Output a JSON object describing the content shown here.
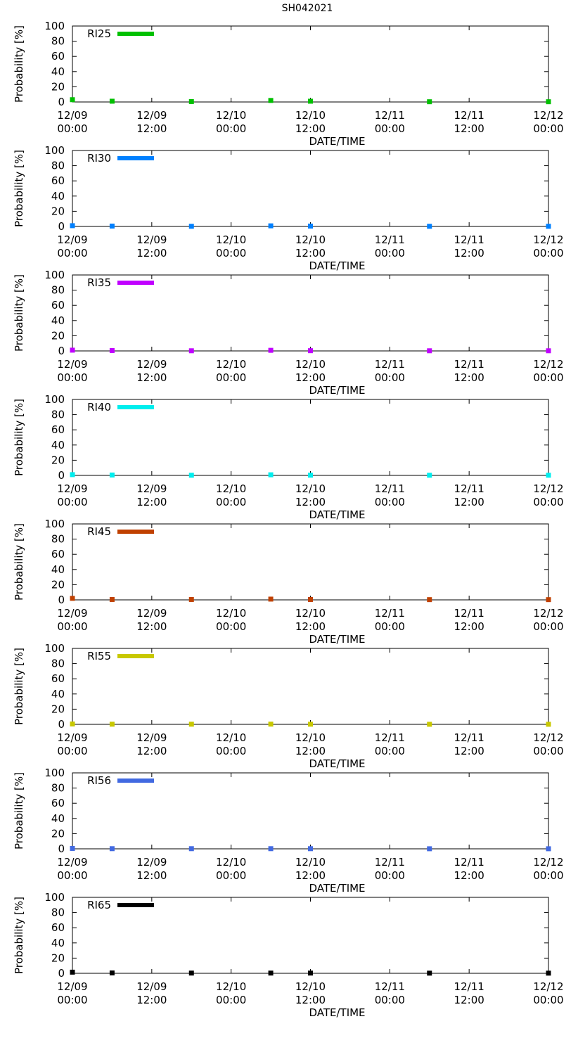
{
  "figure_title": "SH042021",
  "chart_data": [
    {
      "type": "scatter",
      "legend": "RI25",
      "color": "#00c000",
      "xlabel": "DATE/TIME",
      "ylabel": "Probability [%]",
      "ylim": [
        0,
        100
      ],
      "xlim_hours": [
        0,
        72
      ],
      "yticks": [
        "0",
        "20",
        "40",
        "60",
        "80",
        "100"
      ],
      "xticks": [
        {
          "date": "12/09",
          "time": "00:00"
        },
        {
          "date": "12/09",
          "time": "12:00"
        },
        {
          "date": "12/10",
          "time": "00:00"
        },
        {
          "date": "12/10",
          "time": "12:00"
        },
        {
          "date": "12/11",
          "time": "00:00"
        },
        {
          "date": "12/11",
          "time": "12:00"
        },
        {
          "date": "12/12",
          "time": "00:00"
        }
      ],
      "x": [
        0,
        6,
        18,
        30,
        36,
        54,
        72
      ],
      "values": [
        3,
        1,
        0.5,
        2,
        1,
        0.3,
        0.3
      ]
    },
    {
      "type": "scatter",
      "legend": "RI30",
      "color": "#0080ff",
      "xlabel": "DATE/TIME",
      "ylabel": "Probability [%]",
      "ylim": [
        0,
        100
      ],
      "xlim_hours": [
        0,
        72
      ],
      "yticks": [
        "0",
        "20",
        "40",
        "60",
        "80",
        "100"
      ],
      "xticks": [
        {
          "date": "12/09",
          "time": "00:00"
        },
        {
          "date": "12/09",
          "time": "12:00"
        },
        {
          "date": "12/10",
          "time": "00:00"
        },
        {
          "date": "12/10",
          "time": "12:00"
        },
        {
          "date": "12/11",
          "time": "00:00"
        },
        {
          "date": "12/11",
          "time": "12:00"
        },
        {
          "date": "12/12",
          "time": "00:00"
        }
      ],
      "x": [
        0,
        6,
        18,
        30,
        36,
        54,
        72
      ],
      "values": [
        1,
        0.5,
        0.2,
        0.8,
        0.5,
        0.2,
        0.2
      ]
    },
    {
      "type": "scatter",
      "legend": "RI35",
      "color": "#c000ff",
      "xlabel": "DATE/TIME",
      "ylabel": "Probability [%]",
      "ylim": [
        0,
        100
      ],
      "xlim_hours": [
        0,
        72
      ],
      "yticks": [
        "0",
        "20",
        "40",
        "60",
        "80",
        "100"
      ],
      "xticks": [
        {
          "date": "12/09",
          "time": "00:00"
        },
        {
          "date": "12/09",
          "time": "12:00"
        },
        {
          "date": "12/10",
          "time": "00:00"
        },
        {
          "date": "12/10",
          "time": "12:00"
        },
        {
          "date": "12/11",
          "time": "00:00"
        },
        {
          "date": "12/11",
          "time": "12:00"
        },
        {
          "date": "12/12",
          "time": "00:00"
        }
      ],
      "x": [
        0,
        6,
        18,
        30,
        36,
        54,
        72
      ],
      "values": [
        1,
        0.5,
        0.2,
        0.8,
        0.3,
        0.2,
        0.2
      ]
    },
    {
      "type": "scatter",
      "legend": "RI40",
      "color": "#00eeee",
      "xlabel": "DATE/TIME",
      "ylabel": "Probability [%]",
      "ylim": [
        0,
        100
      ],
      "xlim_hours": [
        0,
        72
      ],
      "yticks": [
        "0",
        "20",
        "40",
        "60",
        "80",
        "100"
      ],
      "xticks": [
        {
          "date": "12/09",
          "time": "00:00"
        },
        {
          "date": "12/09",
          "time": "12:00"
        },
        {
          "date": "12/10",
          "time": "00:00"
        },
        {
          "date": "12/10",
          "time": "12:00"
        },
        {
          "date": "12/11",
          "time": "00:00"
        },
        {
          "date": "12/11",
          "time": "12:00"
        },
        {
          "date": "12/12",
          "time": "00:00"
        }
      ],
      "x": [
        0,
        6,
        18,
        30,
        36,
        54,
        72
      ],
      "values": [
        1,
        0.5,
        0.2,
        0.8,
        0.3,
        0.2,
        0.2
      ]
    },
    {
      "type": "scatter",
      "legend": "RI45",
      "color": "#c04000",
      "xlabel": "DATE/TIME",
      "ylabel": "Probability [%]",
      "ylim": [
        0,
        100
      ],
      "xlim_hours": [
        0,
        72
      ],
      "yticks": [
        "0",
        "20",
        "40",
        "60",
        "80",
        "100"
      ],
      "xticks": [
        {
          "date": "12/09",
          "time": "00:00"
        },
        {
          "date": "12/09",
          "time": "12:00"
        },
        {
          "date": "12/10",
          "time": "00:00"
        },
        {
          "date": "12/10",
          "time": "12:00"
        },
        {
          "date": "12/11",
          "time": "00:00"
        },
        {
          "date": "12/11",
          "time": "12:00"
        },
        {
          "date": "12/12",
          "time": "00:00"
        }
      ],
      "x": [
        0,
        6,
        18,
        30,
        36,
        54,
        72
      ],
      "values": [
        2,
        0.5,
        0.5,
        1,
        0.5,
        0.3,
        0.3
      ]
    },
    {
      "type": "scatter",
      "legend": "RI55",
      "color": "#c8c800",
      "xlabel": "DATE/TIME",
      "ylabel": "Probability [%]",
      "ylim": [
        0,
        100
      ],
      "xlim_hours": [
        0,
        72
      ],
      "yticks": [
        "0",
        "20",
        "40",
        "60",
        "80",
        "100"
      ],
      "xticks": [
        {
          "date": "12/09",
          "time": "00:00"
        },
        {
          "date": "12/09",
          "time": "12:00"
        },
        {
          "date": "12/10",
          "time": "00:00"
        },
        {
          "date": "12/10",
          "time": "12:00"
        },
        {
          "date": "12/11",
          "time": "00:00"
        },
        {
          "date": "12/11",
          "time": "12:00"
        },
        {
          "date": "12/12",
          "time": "00:00"
        }
      ],
      "x": [
        0,
        6,
        18,
        30,
        36,
        54,
        72
      ],
      "values": [
        0.5,
        0.2,
        0.2,
        0.3,
        0.2,
        0.1,
        0.1
      ]
    },
    {
      "type": "scatter",
      "legend": "RI56",
      "color": "#4169e1",
      "xlabel": "DATE/TIME",
      "ylabel": "Probability [%]",
      "ylim": [
        0,
        100
      ],
      "xlim_hours": [
        0,
        72
      ],
      "yticks": [
        "0",
        "20",
        "40",
        "60",
        "80",
        "100"
      ],
      "xticks": [
        {
          "date": "12/09",
          "time": "00:00"
        },
        {
          "date": "12/09",
          "time": "12:00"
        },
        {
          "date": "12/10",
          "time": "00:00"
        },
        {
          "date": "12/10",
          "time": "12:00"
        },
        {
          "date": "12/11",
          "time": "00:00"
        },
        {
          "date": "12/11",
          "time": "12:00"
        },
        {
          "date": "12/12",
          "time": "00:00"
        }
      ],
      "x": [
        0,
        6,
        18,
        30,
        36,
        54,
        72
      ],
      "values": [
        0.5,
        0.2,
        0.2,
        0.2,
        0.2,
        0.1,
        0.1
      ]
    },
    {
      "type": "scatter",
      "legend": "RI65",
      "color": "#000000",
      "xlabel": "DATE/TIME",
      "ylabel": "Probability [%]",
      "ylim": [
        0,
        100
      ],
      "xlim_hours": [
        0,
        72
      ],
      "yticks": [
        "0",
        "20",
        "40",
        "60",
        "80",
        "100"
      ],
      "xticks": [
        {
          "date": "12/09",
          "time": "00:00"
        },
        {
          "date": "12/09",
          "time": "12:00"
        },
        {
          "date": "12/10",
          "time": "00:00"
        },
        {
          "date": "12/10",
          "time": "12:00"
        },
        {
          "date": "12/11",
          "time": "00:00"
        },
        {
          "date": "12/11",
          "time": "12:00"
        },
        {
          "date": "12/12",
          "time": "00:00"
        }
      ],
      "x": [
        0,
        6,
        18,
        30,
        36,
        54,
        72
      ],
      "values": [
        1.5,
        0.5,
        0.3,
        0.3,
        0.3,
        0.2,
        0.2
      ]
    }
  ]
}
